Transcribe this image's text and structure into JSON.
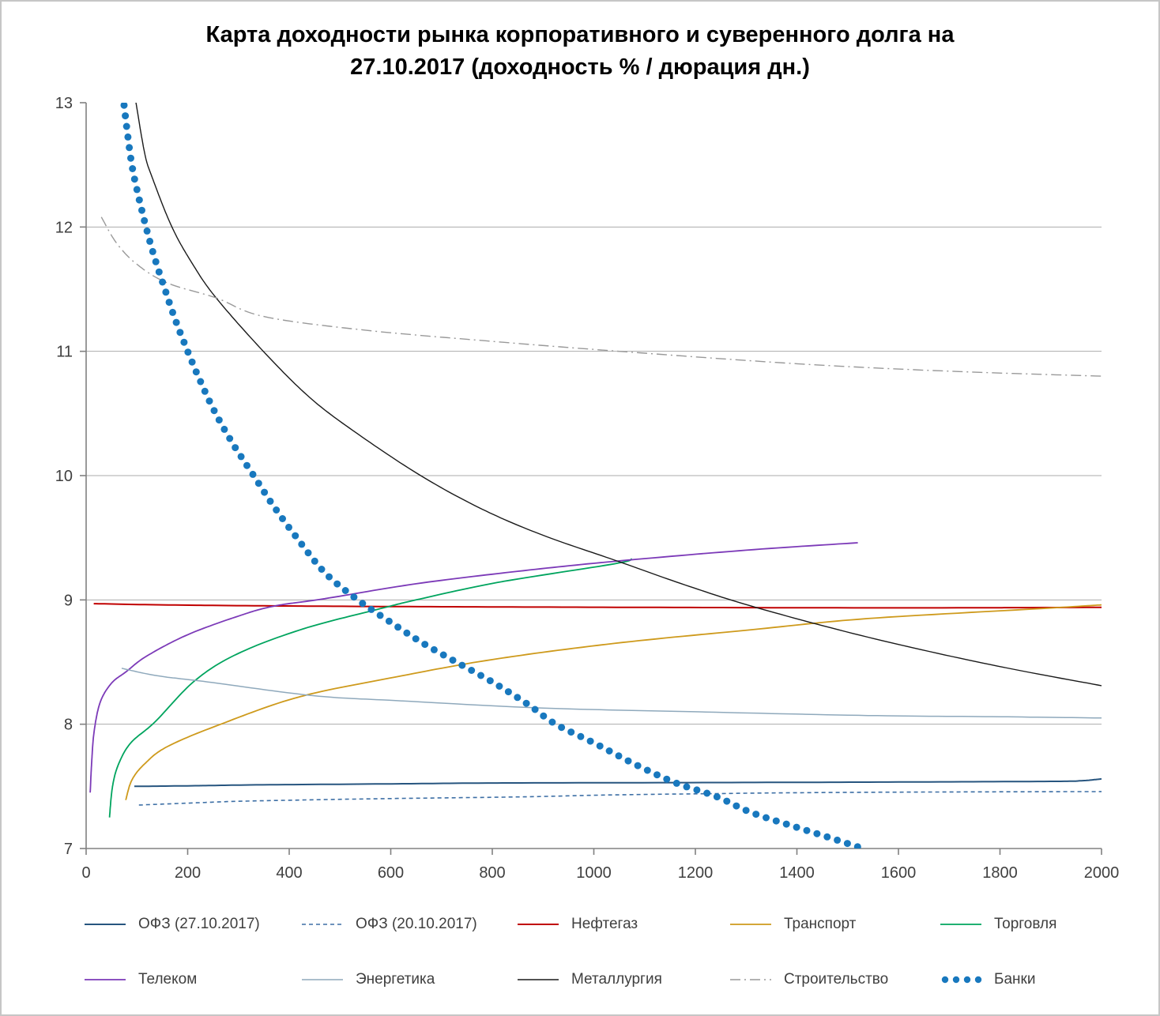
{
  "title": {
    "line1": "Карта доходности рынка корпоративного и суверенного долга на",
    "line2": "27.10.2017 (доходность % / дюрация дн.)"
  },
  "chart_data": {
    "type": "line",
    "title": "Карта доходности рынка корпоративного и суверенного долга на 27.10.2017 (доходность % / дюрация дн.)",
    "xlabel": "",
    "ylabel": "",
    "x_axis": {
      "range": [
        0,
        2000
      ],
      "ticks": [
        0,
        200,
        400,
        600,
        800,
        1000,
        1200,
        1400,
        1600,
        1800,
        2000
      ]
    },
    "y_axis": {
      "range": [
        7,
        13
      ],
      "ticks": [
        7,
        8,
        9,
        10,
        11,
        12,
        13
      ]
    },
    "grid": "horizontal",
    "legend_position": "bottom",
    "axis_color": "#808080",
    "grid_color": "#ababab",
    "series": [
      {
        "name": "ОФЗ (27.10.2017)",
        "color": "#27557f",
        "style": "solid",
        "width": 2,
        "points": [
          [
            95,
            7.5
          ],
          [
            215,
            7.505
          ],
          [
            335,
            7.512
          ],
          [
            600,
            7.52
          ],
          [
            810,
            7.527
          ],
          [
            1270,
            7.531
          ],
          [
            1600,
            7.535
          ],
          [
            1900,
            7.54
          ],
          [
            1960,
            7.545
          ],
          [
            2000,
            7.56
          ]
        ]
      },
      {
        "name": "ОФЗ (20.10.2017)",
        "color": "#3d6fa5",
        "style": "dashed",
        "width": 1.6,
        "points": [
          [
            104,
            7.35
          ],
          [
            200,
            7.365
          ],
          [
            300,
            7.38
          ],
          [
            450,
            7.392
          ],
          [
            600,
            7.402
          ],
          [
            850,
            7.415
          ],
          [
            1020,
            7.43
          ],
          [
            1200,
            7.44
          ],
          [
            1440,
            7.45
          ],
          [
            1700,
            7.455
          ],
          [
            2000,
            7.458
          ]
        ]
      },
      {
        "name": "Нефтегаз",
        "color": "#c00000",
        "style": "solid",
        "width": 2,
        "points": [
          [
            15,
            8.97
          ],
          [
            150,
            8.96
          ],
          [
            400,
            8.951
          ],
          [
            700,
            8.945
          ],
          [
            1100,
            8.94
          ],
          [
            1600,
            8.936
          ],
          [
            2000,
            8.94
          ]
        ]
      },
      {
        "name": "Транспорт",
        "color": "#ce9a1c",
        "style": "solid",
        "width": 1.8,
        "points": [
          [
            78,
            7.39
          ],
          [
            90,
            7.55
          ],
          [
            115,
            7.68
          ],
          [
            160,
            7.82
          ],
          [
            265,
            8.0
          ],
          [
            420,
            8.22
          ],
          [
            610,
            8.38
          ],
          [
            800,
            8.52
          ],
          [
            1040,
            8.65
          ],
          [
            1310,
            8.76
          ],
          [
            1540,
            8.85
          ],
          [
            1880,
            8.93
          ],
          [
            2000,
            8.96
          ]
        ]
      },
      {
        "name": "Торговля",
        "color": "#00a45e",
        "style": "solid",
        "width": 1.8,
        "points": [
          [
            46,
            7.25
          ],
          [
            52,
            7.5
          ],
          [
            64,
            7.68
          ],
          [
            88,
            7.85
          ],
          [
            136,
            8.02
          ],
          [
            214,
            8.35
          ],
          [
            300,
            8.57
          ],
          [
            430,
            8.77
          ],
          [
            580,
            8.93
          ],
          [
            650,
            9.0
          ],
          [
            810,
            9.14
          ],
          [
            1040,
            9.29
          ],
          [
            1075,
            9.33
          ]
        ]
      },
      {
        "name": "Телеком",
        "color": "#7c3ab8",
        "style": "solid",
        "width": 1.8,
        "points": [
          [
            8,
            7.45
          ],
          [
            11,
            7.7
          ],
          [
            16,
            7.95
          ],
          [
            28,
            8.18
          ],
          [
            50,
            8.33
          ],
          [
            78,
            8.42
          ],
          [
            120,
            8.55
          ],
          [
            200,
            8.72
          ],
          [
            300,
            8.87
          ],
          [
            370,
            8.95
          ],
          [
            470,
            9.01
          ],
          [
            650,
            9.13
          ],
          [
            850,
            9.23
          ],
          [
            1040,
            9.31
          ],
          [
            1300,
            9.4
          ],
          [
            1520,
            9.46
          ]
        ]
      },
      {
        "name": "Энергетика",
        "color": "#8fa9bc",
        "style": "solid",
        "width": 1.5,
        "points": [
          [
            70,
            8.45
          ],
          [
            140,
            8.39
          ],
          [
            240,
            8.34
          ],
          [
            447,
            8.23
          ],
          [
            610,
            8.19
          ],
          [
            900,
            8.13
          ],
          [
            1200,
            8.1
          ],
          [
            1540,
            8.07
          ],
          [
            1800,
            8.06
          ],
          [
            2000,
            8.05
          ]
        ]
      },
      {
        "name": "Металлургия",
        "color": "#1a1a1a",
        "style": "solid",
        "width": 1.4,
        "points": [
          [
            88,
            13.2
          ],
          [
            96,
            13.05
          ],
          [
            115,
            12.6
          ],
          [
            130,
            12.4
          ],
          [
            169,
            12.0
          ],
          [
            210,
            11.7
          ],
          [
            256,
            11.43
          ],
          [
            349,
            11.0
          ],
          [
            440,
            10.63
          ],
          [
            530,
            10.35
          ],
          [
            659,
            10.0
          ],
          [
            780,
            9.73
          ],
          [
            900,
            9.52
          ],
          [
            1041,
            9.32
          ],
          [
            1180,
            9.12
          ],
          [
            1319,
            8.94
          ],
          [
            1540,
            8.7
          ],
          [
            1780,
            8.48
          ],
          [
            2000,
            8.31
          ]
        ]
      },
      {
        "name": "Строительство",
        "color": "#999999",
        "style": "dashdot",
        "width": 1.4,
        "points": [
          [
            30,
            12.08
          ],
          [
            60,
            11.87
          ],
          [
            100,
            11.7
          ],
          [
            160,
            11.55
          ],
          [
            256,
            11.43
          ],
          [
            350,
            11.28
          ],
          [
            550,
            11.17
          ],
          [
            800,
            11.08
          ],
          [
            1050,
            11.0
          ],
          [
            1400,
            10.9
          ],
          [
            1700,
            10.84
          ],
          [
            2000,
            10.8
          ]
        ]
      },
      {
        "name": "Банки",
        "color": "#1878be",
        "style": "dots",
        "width": 2,
        "marker_radius": 4.5,
        "points": [
          [
            70,
            13.15
          ],
          [
            80,
            12.8
          ],
          [
            90,
            12.5
          ],
          [
            103,
            12.25
          ],
          [
            118,
            12.0
          ],
          [
            135,
            11.75
          ],
          [
            155,
            11.5
          ],
          [
            176,
            11.25
          ],
          [
            200,
            11.0
          ],
          [
            226,
            10.75
          ],
          [
            255,
            10.5
          ],
          [
            290,
            10.25
          ],
          [
            330,
            10.0
          ],
          [
            370,
            9.75
          ],
          [
            415,
            9.5
          ],
          [
            470,
            9.22
          ],
          [
            535,
            9.0
          ],
          [
            600,
            8.82
          ],
          [
            660,
            8.66
          ],
          [
            729,
            8.5
          ],
          [
            800,
            8.34
          ],
          [
            870,
            8.16
          ],
          [
            925,
            8.0
          ],
          [
            1000,
            7.85
          ],
          [
            1080,
            7.68
          ],
          [
            1160,
            7.53
          ],
          [
            1240,
            7.42
          ],
          [
            1310,
            7.29
          ],
          [
            1400,
            7.17
          ],
          [
            1470,
            7.08
          ],
          [
            1530,
            7.0
          ]
        ]
      }
    ]
  },
  "legend": {
    "rows": [
      [
        "ОФЗ (27.10.2017)",
        "ОФЗ (20.10.2017)",
        "Нефтегаз",
        "Транспорт",
        "Торговля"
      ],
      [
        "Телеком",
        "Энергетика",
        "Металлургия",
        "Строительство",
        "Банки"
      ]
    ]
  }
}
